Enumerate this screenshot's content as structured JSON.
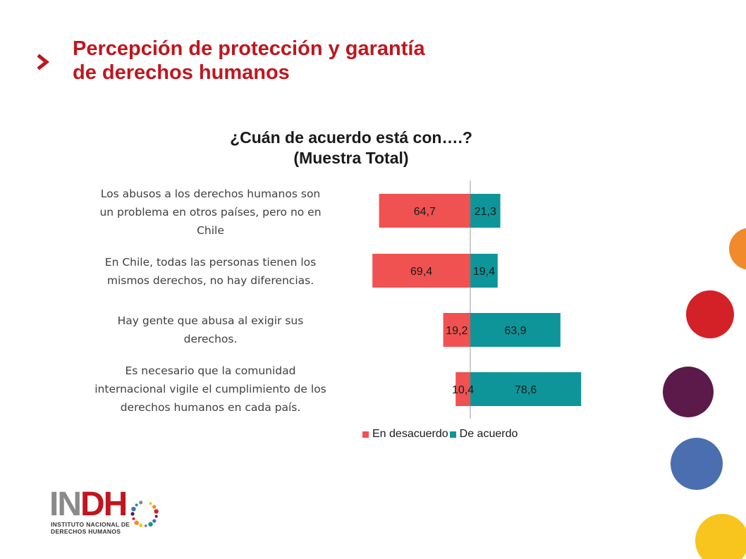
{
  "slide": {
    "title_line1": "Percepción de protección y garantía",
    "title_line2": "de derechos humanos",
    "accent_color": "#c0161e"
  },
  "chart_data": {
    "type": "bar",
    "orientation": "diverging-horizontal",
    "title_line1": "¿Cuán de acuerdo está con….?",
    "title_line2": "(Muestra Total)",
    "categories": [
      "Los abusos a los derechos humanos son un problema en otros países, pero no en Chile",
      "En Chile, todas las personas tienen los mismos derechos, no hay diferencias.",
      "Hay gente que abusa al exigir sus derechos.",
      "Es necesario que la comunidad internacional vigile el cumplimiento de los derechos humanos en cada país."
    ],
    "category_lines": [
      [
        "Los abusos a los derechos humanos son",
        "un problema en otros países, pero no en",
        "Chile"
      ],
      [
        "En Chile, todas las personas tienen los",
        "mismos derechos, no hay diferencias."
      ],
      [
        "Hay gente que abusa al exigir sus",
        "derechos."
      ],
      [
        "Es necesario que la comunidad",
        "internacional vigile el cumplimiento de los",
        "derechos humanos en cada país."
      ]
    ],
    "series": [
      {
        "name": "En desacuerdo",
        "values": [
          64.7,
          69.4,
          19.2,
          10.4
        ],
        "labels": [
          "64,7",
          "69,4",
          "19,2",
          "10,4"
        ],
        "color": "#f05151"
      },
      {
        "name": "De acuerdo",
        "values": [
          21.3,
          19.4,
          63.9,
          78.6
        ],
        "labels": [
          "21,3",
          "19,4",
          "63,9",
          "78,6"
        ],
        "color": "#0e9599"
      }
    ],
    "grid": false,
    "legend_position": "bottom"
  },
  "decor": {
    "circle_colors": [
      "#f08a2a",
      "#d42127",
      "#5b1a4a",
      "#4a6eaf",
      "#f7c51d"
    ]
  },
  "logo": {
    "name_prefix": "IN",
    "name_suffix": "DH",
    "subtitle_line1": "INSTITUTO NACIONAL DE",
    "subtitle_line2": "DERECHOS HUMANOS",
    "prefix_color": "#8a8a8a",
    "suffix_color": "#c0161e"
  }
}
